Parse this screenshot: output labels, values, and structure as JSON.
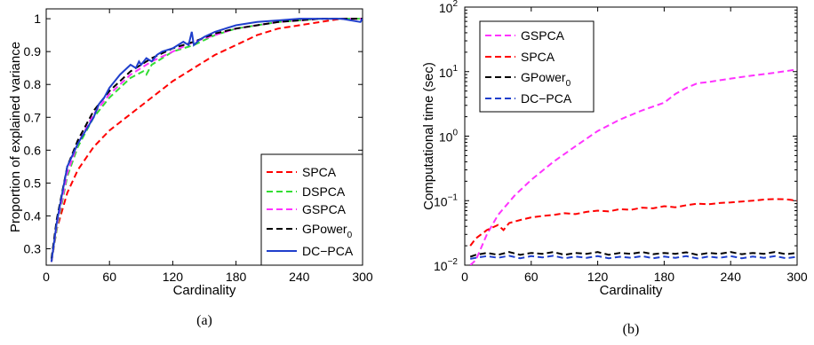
{
  "chart_data": [
    {
      "type": "line",
      "caption": "(a)",
      "xlabel": "Cardinality",
      "ylabel": "Proportion of explained variance",
      "xlim": [
        0,
        300
      ],
      "ylim": [
        0.25,
        1.03
      ],
      "xticks": [
        0,
        60,
        120,
        180,
        240,
        300
      ],
      "yticks": [
        0.3,
        0.4,
        0.5,
        0.6,
        0.7,
        0.8,
        0.9,
        1
      ],
      "ytick_labels": [
        "0.3",
        "0.4",
        "0.5",
        "0.6",
        "0.7",
        "0.8",
        "0.9",
        "1"
      ],
      "legend": "bottom-right",
      "series": [
        {
          "name": "SPCA",
          "color": "#ff0000",
          "dash": "dashed",
          "x": [
            5,
            10,
            20,
            30,
            45,
            60,
            80,
            100,
            120,
            140,
            160,
            180,
            200,
            220,
            240,
            260,
            280,
            300
          ],
          "y": [
            0.26,
            0.36,
            0.47,
            0.54,
            0.61,
            0.66,
            0.71,
            0.76,
            0.81,
            0.85,
            0.89,
            0.92,
            0.95,
            0.97,
            0.98,
            0.99,
            1.0,
            1.0
          ]
        },
        {
          "name": "DSPCA",
          "color": "#33dd33",
          "dash": "dashed",
          "x": [
            5,
            10,
            20,
            30,
            45,
            60,
            80,
            92,
            95,
            100,
            120,
            140,
            160,
            180,
            200,
            220,
            240,
            260,
            280,
            300
          ],
          "y": [
            0.26,
            0.36,
            0.52,
            0.61,
            0.7,
            0.76,
            0.82,
            0.84,
            0.83,
            0.86,
            0.9,
            0.92,
            0.95,
            0.97,
            0.98,
            0.99,
            0.995,
            1.0,
            1.0,
            1.0
          ]
        },
        {
          "name": "GSPCA",
          "color": "#ff33ff",
          "dash": "dashed",
          "x": [
            5,
            10,
            20,
            30,
            45,
            60,
            80,
            100,
            120,
            140,
            160,
            180,
            200,
            220,
            240,
            260,
            280,
            300
          ],
          "y": [
            0.26,
            0.37,
            0.53,
            0.62,
            0.71,
            0.77,
            0.83,
            0.87,
            0.9,
            0.93,
            0.95,
            0.97,
            0.98,
            0.99,
            0.995,
            1.0,
            1.0,
            1.0
          ]
        },
        {
          "name": "GPower",
          "sub": "0",
          "color": "#000000",
          "dash": "dashed",
          "x": [
            5,
            10,
            20,
            30,
            45,
            60,
            80,
            100,
            120,
            140,
            160,
            180,
            200,
            220,
            240,
            260,
            280,
            300
          ],
          "y": [
            0.27,
            0.39,
            0.55,
            0.63,
            0.72,
            0.78,
            0.84,
            0.88,
            0.91,
            0.93,
            0.955,
            0.97,
            0.98,
            0.99,
            0.995,
            1.0,
            1.0,
            1.0
          ]
        },
        {
          "name": "DC−PCA",
          "color": "#1f3fcc",
          "dash": "solid",
          "x": [
            5,
            10,
            20,
            30,
            45,
            50,
            55,
            60,
            70,
            80,
            85,
            88,
            90,
            95,
            100,
            105,
            110,
            120,
            130,
            135,
            138,
            140,
            145,
            150,
            160,
            170,
            180,
            200,
            220,
            240,
            260,
            280,
            298,
            300
          ],
          "y": [
            0.26,
            0.38,
            0.55,
            0.62,
            0.7,
            0.74,
            0.76,
            0.79,
            0.83,
            0.86,
            0.85,
            0.87,
            0.86,
            0.88,
            0.87,
            0.89,
            0.9,
            0.91,
            0.93,
            0.92,
            0.96,
            0.92,
            0.935,
            0.945,
            0.96,
            0.97,
            0.98,
            0.99,
            0.995,
            1.0,
            1.0,
            1.0,
            0.99,
            1.0
          ]
        }
      ]
    },
    {
      "type": "line",
      "caption": "(b)",
      "xlabel": "Cardinality",
      "ylabel": "Computational time (sec)",
      "xlim": [
        0,
        300
      ],
      "ylim": [
        0.01,
        100
      ],
      "yscale": "log",
      "xticks": [
        0,
        60,
        120,
        180,
        240,
        300
      ],
      "yticks": [
        0.01,
        0.1,
        1,
        10,
        100
      ],
      "ytick_labels": [
        {
          "base": "10",
          "exp": "−2"
        },
        {
          "base": "10",
          "exp": "−1"
        },
        {
          "base": "10",
          "exp": "0"
        },
        {
          "base": "10",
          "exp": "1"
        },
        {
          "base": "10",
          "exp": "2"
        }
      ],
      "legend": "top-left",
      "series": [
        {
          "name": "GSPCA",
          "color": "#ff33ff",
          "dash": "dashed",
          "x": [
            5,
            10,
            20,
            30,
            45,
            60,
            80,
            100,
            120,
            140,
            160,
            180,
            190,
            200,
            210,
            220,
            240,
            260,
            280,
            300
          ],
          "y": [
            0.01,
            0.012,
            0.03,
            0.06,
            0.12,
            0.21,
            0.4,
            0.7,
            1.2,
            1.8,
            2.5,
            3.3,
            4.5,
            5.6,
            6.6,
            6.9,
            7.8,
            8.7,
            9.6,
            10.8
          ]
        },
        {
          "name": "SPCA",
          "color": "#ff0000",
          "dash": "dashed",
          "x": [
            5,
            10,
            20,
            30,
            35,
            40,
            50,
            60,
            70,
            80,
            90,
            100,
            110,
            120,
            130,
            140,
            150,
            160,
            170,
            180,
            190,
            200,
            210,
            220,
            230,
            240,
            250,
            260,
            270,
            280,
            290,
            300
          ],
          "y": [
            0.02,
            0.026,
            0.035,
            0.042,
            0.035,
            0.045,
            0.05,
            0.055,
            0.058,
            0.06,
            0.064,
            0.062,
            0.067,
            0.07,
            0.068,
            0.074,
            0.072,
            0.078,
            0.076,
            0.082,
            0.079,
            0.085,
            0.09,
            0.088,
            0.092,
            0.094,
            0.097,
            0.1,
            0.104,
            0.106,
            0.105,
            0.1
          ]
        },
        {
          "name": "GPower",
          "sub": "0",
          "color": "#000000",
          "dash": "dashed",
          "x": [
            5,
            10,
            20,
            30,
            40,
            50,
            60,
            70,
            80,
            90,
            100,
            110,
            120,
            130,
            140,
            150,
            160,
            170,
            180,
            190,
            200,
            210,
            220,
            230,
            240,
            250,
            260,
            270,
            280,
            290,
            300
          ],
          "y": [
            0.0135,
            0.0145,
            0.0155,
            0.0145,
            0.016,
            0.0145,
            0.0155,
            0.015,
            0.016,
            0.0145,
            0.0155,
            0.015,
            0.016,
            0.0145,
            0.0155,
            0.015,
            0.016,
            0.0148,
            0.0155,
            0.015,
            0.0158,
            0.0145,
            0.0155,
            0.015,
            0.016,
            0.0148,
            0.0155,
            0.015,
            0.016,
            0.0148,
            0.0155
          ]
        },
        {
          "name": "DC−PCA",
          "color": "#1f3fcc",
          "dash": "dashed",
          "x": [
            5,
            10,
            20,
            30,
            40,
            50,
            60,
            70,
            80,
            90,
            100,
            110,
            120,
            130,
            140,
            150,
            160,
            170,
            180,
            190,
            200,
            210,
            220,
            230,
            240,
            250,
            260,
            270,
            280,
            290,
            300
          ],
          "y": [
            0.0125,
            0.013,
            0.0138,
            0.013,
            0.014,
            0.0128,
            0.0138,
            0.0132,
            0.014,
            0.0128,
            0.0136,
            0.013,
            0.0138,
            0.0128,
            0.0135,
            0.013,
            0.0138,
            0.0128,
            0.0136,
            0.013,
            0.0138,
            0.0127,
            0.0136,
            0.013,
            0.0138,
            0.0128,
            0.0136,
            0.013,
            0.0138,
            0.0128,
            0.0135
          ]
        }
      ]
    }
  ]
}
